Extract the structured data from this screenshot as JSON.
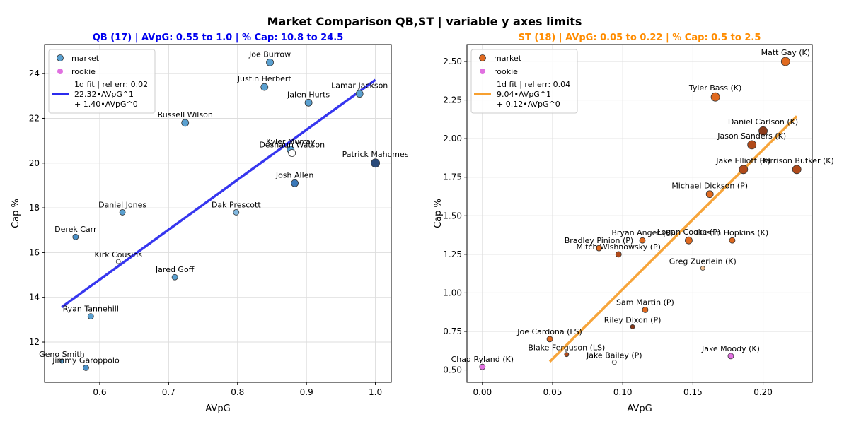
{
  "figure_title": "Market Comparison QB,ST | variable y axes limits",
  "colors": {
    "qb_title": "#0000ee",
    "st_title": "#ff8c00",
    "qb_market": "#5aa0d0",
    "qb_fit": "#2b2bee",
    "st_market": "#e06a20",
    "st_fit": "#f7a030",
    "rookie": "#e070e0",
    "grid": "#dddddd"
  },
  "chart_data": [
    {
      "type": "scatter",
      "title": "QB (17) | AVpG: 0.55 to 1.0 | % Cap: 10.8 to 24.5",
      "xlabel": "AVpG",
      "ylabel": "Cap %",
      "xlim": [
        0.52,
        1.023
      ],
      "ylim": [
        10.2,
        25.3
      ],
      "xticks": [
        0.6,
        0.7,
        0.8,
        0.9,
        1.0
      ],
      "xtick_labels": [
        "0.6",
        "0.7",
        "0.8",
        "0.9",
        "1.0"
      ],
      "yticks": [
        12,
        14,
        16,
        18,
        20,
        22,
        24
      ],
      "ytick_labels": [
        "12",
        "14",
        "16",
        "18",
        "20",
        "22",
        "24"
      ],
      "grid": true,
      "legend_position": "top-left",
      "legend": {
        "market": "market",
        "rookie": "rookie",
        "fit_lines": [
          "1d fit | rel err: 0.02",
          "22.32•AVpG^1",
          "+ 1.40•AVpG^0"
        ]
      },
      "fit": {
        "slope": 22.32,
        "intercept": 1.4,
        "x_range": [
          0.545,
          1.0
        ]
      },
      "points": [
        {
          "label": "Joe Burrow",
          "x": 0.847,
          "y": 24.5,
          "r": 5,
          "fill": "#5aa0d0"
        },
        {
          "label": "Lamar Jackson",
          "x": 0.977,
          "y": 23.1,
          "r": 5,
          "fill": "#5aa0d0"
        },
        {
          "label": "Justin Herbert",
          "x": 0.839,
          "y": 23.4,
          "r": 5,
          "fill": "#5aa0d0"
        },
        {
          "label": "Jalen Hurts",
          "x": 0.903,
          "y": 22.7,
          "r": 5,
          "fill": "#5aa0d0"
        },
        {
          "label": "Russell Wilson",
          "x": 0.724,
          "y": 21.8,
          "r": 5,
          "fill": "#5aa0d0"
        },
        {
          "label": "Kyler Murray",
          "x": 0.877,
          "y": 20.6,
          "r": 5,
          "fill": "#5aa0d0"
        },
        {
          "label": "Deshaun Watson",
          "x": 0.879,
          "y": 20.45,
          "r": 5,
          "fill": "#ffffff"
        },
        {
          "label": "Patrick Mahomes",
          "x": 1.0,
          "y": 20.0,
          "r": 6,
          "fill": "#2a4a7a"
        },
        {
          "label": "Josh Allen",
          "x": 0.883,
          "y": 19.1,
          "r": 5,
          "fill": "#3a78b8"
        },
        {
          "label": "Daniel Jones",
          "x": 0.633,
          "y": 17.8,
          "r": 4,
          "fill": "#5aa0d0"
        },
        {
          "label": "Dak Prescott",
          "x": 0.798,
          "y": 17.8,
          "r": 4,
          "fill": "#80b8e0"
        },
        {
          "label": "Derek Carr",
          "x": 0.565,
          "y": 16.7,
          "r": 4,
          "fill": "#4a90c8"
        },
        {
          "label": "Kirk Cousins",
          "x": 0.627,
          "y": 15.6,
          "r": 3,
          "fill": "#ffffff"
        },
        {
          "label": "Jared Goff",
          "x": 0.709,
          "y": 14.9,
          "r": 4,
          "fill": "#5aa0d0"
        },
        {
          "label": "Ryan Tannehill",
          "x": 0.587,
          "y": 13.15,
          "r": 4,
          "fill": "#5aa0d0"
        },
        {
          "label": "Geno Smith",
          "x": 0.545,
          "y": 11.15,
          "r": 3,
          "fill": "#5aa0d0"
        },
        {
          "label": "Jimmy Garoppolo",
          "x": 0.58,
          "y": 10.85,
          "r": 4,
          "fill": "#4a90c8"
        }
      ]
    },
    {
      "type": "scatter",
      "title": "ST (18) | AVpG: 0.05 to 0.22 | % Cap: 0.5 to 2.5",
      "xlabel": "AVpG",
      "ylabel": "Cap %",
      "xlim": [
        -0.011,
        0.235
      ],
      "ylim": [
        0.42,
        2.61
      ],
      "xticks": [
        0.0,
        0.05,
        0.1,
        0.15,
        0.2
      ],
      "xtick_labels": [
        "0.00",
        "0.05",
        "0.10",
        "0.15",
        "0.20"
      ],
      "yticks": [
        0.5,
        0.75,
        1.0,
        1.25,
        1.5,
        1.75,
        2.0,
        2.25,
        2.5
      ],
      "ytick_labels": [
        "0.50",
        "0.75",
        "1.00",
        "1.25",
        "1.50",
        "1.75",
        "2.00",
        "2.25",
        "2.50"
      ],
      "grid": true,
      "legend_position": "top-left",
      "legend": {
        "market": "market",
        "rookie": "rookie",
        "fit_lines": [
          "1d fit | rel err: 0.04",
          "9.04•AVpG^1",
          "+ 0.12•AVpG^0"
        ]
      },
      "fit": {
        "slope": 9.04,
        "intercept": 0.12,
        "x_range": [
          0.048,
          0.224
        ]
      },
      "points": [
        {
          "label": "Matt Gay (K)",
          "x": 0.216,
          "y": 2.5,
          "r": 6,
          "fill": "#e06a20"
        },
        {
          "label": "Tyler Bass (K)",
          "x": 0.166,
          "y": 2.27,
          "r": 6,
          "fill": "#e06a20"
        },
        {
          "label": "Daniel Carlson (K)",
          "x": 0.2,
          "y": 2.05,
          "r": 6,
          "fill": "#8a3a1a"
        },
        {
          "label": "Jason Sanders (K)",
          "x": 0.192,
          "y": 1.96,
          "r": 6,
          "fill": "#b04a1a"
        },
        {
          "label": "Jake Elliott (K)",
          "x": 0.186,
          "y": 1.8,
          "r": 6,
          "fill": "#b04a1a"
        },
        {
          "label": "Harrison Butker (K)",
          "x": 0.224,
          "y": 1.8,
          "r": 6,
          "fill": "#b04a1a"
        },
        {
          "label": "Michael Dickson (P)",
          "x": 0.162,
          "y": 1.64,
          "r": 5,
          "fill": "#e06a20"
        },
        {
          "label": "Bryan Anger (P)",
          "x": 0.114,
          "y": 1.34,
          "r": 4,
          "fill": "#e06a20"
        },
        {
          "label": "Logan Cooke (P)",
          "x": 0.147,
          "y": 1.34,
          "r": 5,
          "fill": "#e06a20"
        },
        {
          "label": "Dustin Hopkins (K)",
          "x": 0.178,
          "y": 1.34,
          "r": 4,
          "fill": "#e06a20"
        },
        {
          "label": "Bradley Pinion (P)",
          "x": 0.083,
          "y": 1.29,
          "r": 4,
          "fill": "#e06a20"
        },
        {
          "label": "Mitch Wishnowsky (P)",
          "x": 0.097,
          "y": 1.25,
          "r": 4,
          "fill": "#b04a1a"
        },
        {
          "label": "Greg Zuerlein (K)",
          "x": 0.157,
          "y": 1.16,
          "r": 3,
          "fill": "#f0c090"
        },
        {
          "label": "Sam Martin (P)",
          "x": 0.116,
          "y": 0.89,
          "r": 4,
          "fill": "#e06a20"
        },
        {
          "label": "Riley Dixon (P)",
          "x": 0.107,
          "y": 0.78,
          "r": 3,
          "fill": "#8a3a1a"
        },
        {
          "label": "Joe Cardona (LS)",
          "x": 0.048,
          "y": 0.7,
          "r": 4,
          "fill": "#e06a20"
        },
        {
          "label": "Blake Ferguson (LS)",
          "x": 0.06,
          "y": 0.6,
          "r": 3,
          "fill": "#b04a1a"
        },
        {
          "label": "Jake Bailey (P)",
          "x": 0.094,
          "y": 0.55,
          "r": 3,
          "fill": "#ffffff"
        },
        {
          "label": "Jake Moody (K)",
          "x": 0.177,
          "y": 0.59,
          "r": 4,
          "fill": "#e070e0"
        },
        {
          "label": "Chad Ryland (K)",
          "x": 0.0,
          "y": 0.52,
          "r": 4,
          "fill": "#e070e0"
        }
      ]
    }
  ]
}
